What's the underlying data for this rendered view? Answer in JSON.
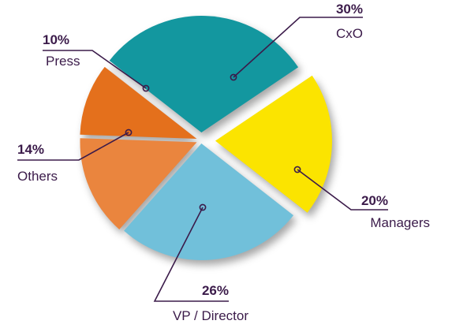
{
  "chart_data": {
    "type": "pie",
    "title": "",
    "slices": [
      {
        "label": "CxO",
        "value": 30,
        "value_label": "30%",
        "color": "#13979f"
      },
      {
        "label": "Managers",
        "value": 20,
        "value_label": "20%",
        "color": "#fbe400"
      },
      {
        "label": "VP / Director",
        "value": 26,
        "value_label": "26%",
        "color": "#71c0da"
      },
      {
        "label": "Others",
        "value": 14,
        "value_label": "14%",
        "color": "#ea853e"
      },
      {
        "label": "Press",
        "value": 10,
        "value_label": "10%",
        "color": "#e4701c"
      }
    ],
    "legend": "none",
    "exploded": true,
    "data_labels": "outside with leader lines"
  }
}
